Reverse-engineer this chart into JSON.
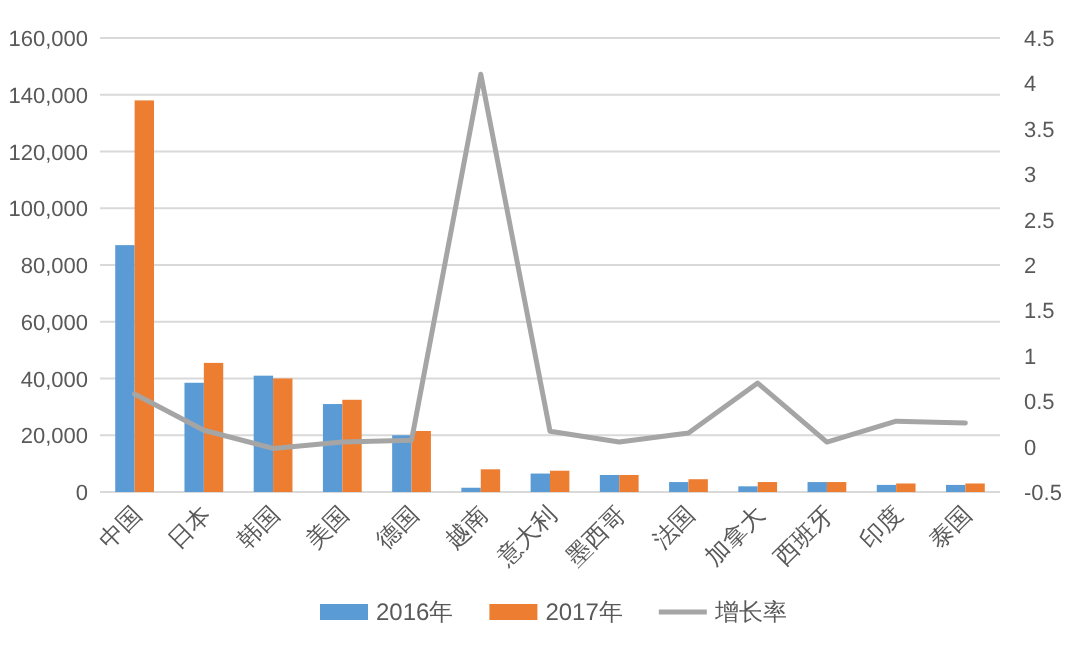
{
  "chart_data": {
    "type": "bar",
    "categories": [
      "中国",
      "日本",
      "韩国",
      "美国",
      "德国",
      "越南",
      "意大利",
      "墨西哥",
      "法国",
      "加拿大",
      "西班牙",
      "印度",
      "泰国"
    ],
    "series": [
      {
        "name": "2016年",
        "color": "#5b9bd5",
        "values": [
          87000,
          38500,
          41000,
          31000,
          20000,
          1500,
          6500,
          6000,
          3500,
          2000,
          3500,
          2500,
          2500
        ]
      },
      {
        "name": "2017年",
        "color": "#ed7d31",
        "values": [
          138000,
          45500,
          40000,
          32500,
          21500,
          8000,
          7500,
          6000,
          4500,
          3500,
          3500,
          3000,
          3000
        ]
      },
      {
        "name": "增长率",
        "type": "line",
        "axis": "y2",
        "color": "#a5a5a5",
        "values": [
          0.58,
          0.18,
          -0.02,
          0.05,
          0.07,
          4.1,
          0.17,
          0.05,
          0.15,
          0.7,
          0.05,
          0.28,
          0.26
        ]
      }
    ],
    "ylim": [
      0,
      160000
    ],
    "yticks": [
      0,
      {
        "value": 20000,
        "label": "20,000"
      },
      {
        "value": 40000,
        "label": "40,000"
      },
      {
        "value": 60000,
        "label": "60,000"
      },
      {
        "value": 80000,
        "label": "80,000"
      },
      {
        "value": 100000,
        "label": "100,000"
      },
      {
        "value": 120000,
        "label": "120,000"
      },
      {
        "value": 140000,
        "label": "140,000"
      },
      {
        "value": 160000,
        "label": "160,000"
      }
    ],
    "y2lim": [
      -0.5,
      4.5
    ],
    "y2ticks": [
      -0.5,
      0,
      0.5,
      1,
      1.5,
      2,
      2.5,
      3,
      3.5,
      4,
      4.5
    ],
    "grid": "y",
    "legend": "bottom"
  }
}
